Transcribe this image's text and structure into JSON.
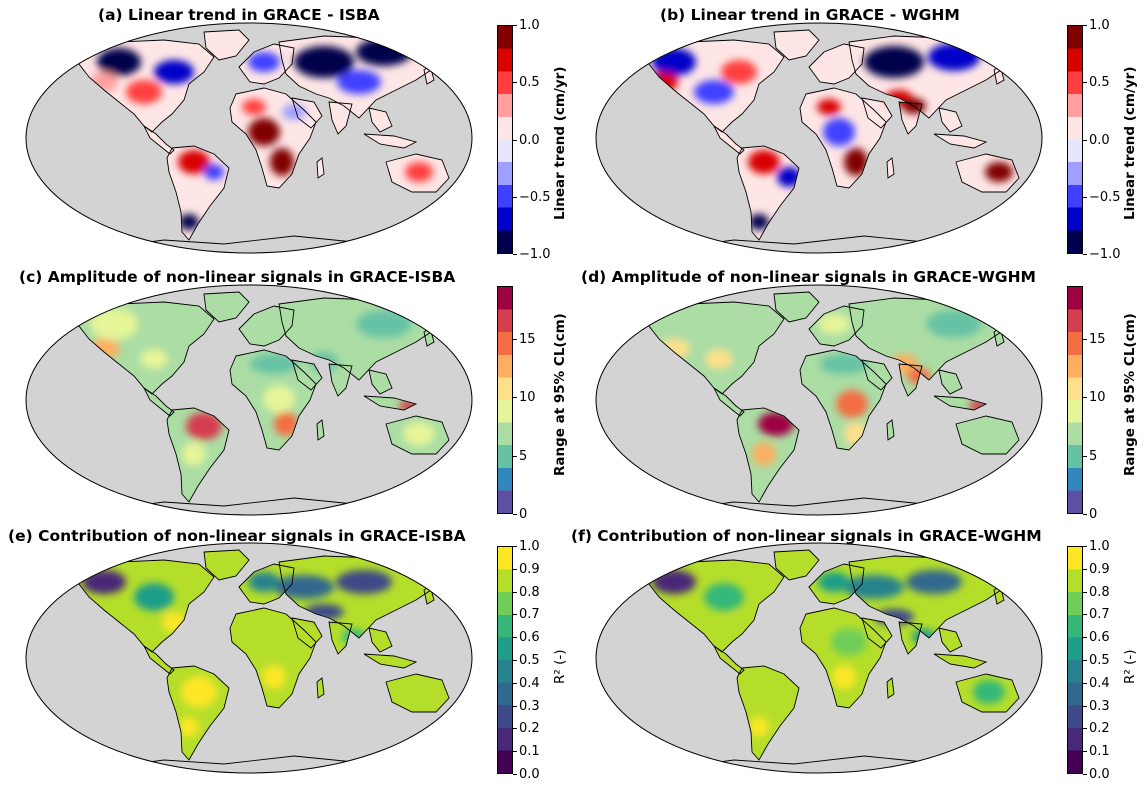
{
  "panels": [
    {
      "id": "a",
      "title": "(a) Linear trend in GRACE - ISBA",
      "kind": "trend"
    },
    {
      "id": "b",
      "title": "(b) Linear trend in GRACE - WGHM",
      "kind": "trend"
    },
    {
      "id": "c",
      "title": "(c) Amplitude of non-linear signals in GRACE-ISBA",
      "kind": "amp"
    },
    {
      "id": "d",
      "title": "(d) Amplitude of non-linear signals in GRACE-WGHM",
      "kind": "amp"
    },
    {
      "id": "e",
      "title": "(e) Contribution of non-linear signals in GRACE-ISBA",
      "kind": "r2"
    },
    {
      "id": "f",
      "title": "(f) Contribution of non-linear signals in GRACE-WGHM",
      "kind": "r2"
    }
  ],
  "colorbars": {
    "trend": {
      "label": "Linear trend (cm/yr)",
      "ticks": [
        "1.0",
        "0.5",
        "0.0",
        "−0.5",
        "−1.0"
      ],
      "min": -1.0,
      "max": 1.0,
      "colors": [
        "#00004c",
        "#0000c8",
        "#3f3fff",
        "#9f9fff",
        "#e6e6ff",
        "#ffe6e6",
        "#ff9f9f",
        "#ff3f3f",
        "#d90000",
        "#800000"
      ]
    },
    "amp": {
      "label": "Range at 95% CL(cm)",
      "ticks": [
        "15",
        "10",
        "5",
        "0"
      ],
      "min": 0,
      "max": 19.5,
      "colors": [
        "#5e4fa2",
        "#3288bd",
        "#66c2a5",
        "#abdda4",
        "#e6f598",
        "#fee08b",
        "#fdae61",
        "#f46d43",
        "#d53e4f",
        "#9e0142"
      ]
    },
    "r2": {
      "label": "R² (-)",
      "ticks": [
        "1.0",
        "0.9",
        "0.8",
        "0.7",
        "0.6",
        "0.5",
        "0.4",
        "0.3",
        "0.2",
        "0.1",
        "0.0"
      ],
      "min": 0,
      "max": 1,
      "colors": [
        "#440154",
        "#482878",
        "#3e4a89",
        "#31688e",
        "#26828e",
        "#1f9e89",
        "#35b779",
        "#6ece58",
        "#b5de2b",
        "#fde725"
      ]
    }
  },
  "colors": {
    "ocean": "#d3d3d3",
    "border": "#000000"
  }
}
